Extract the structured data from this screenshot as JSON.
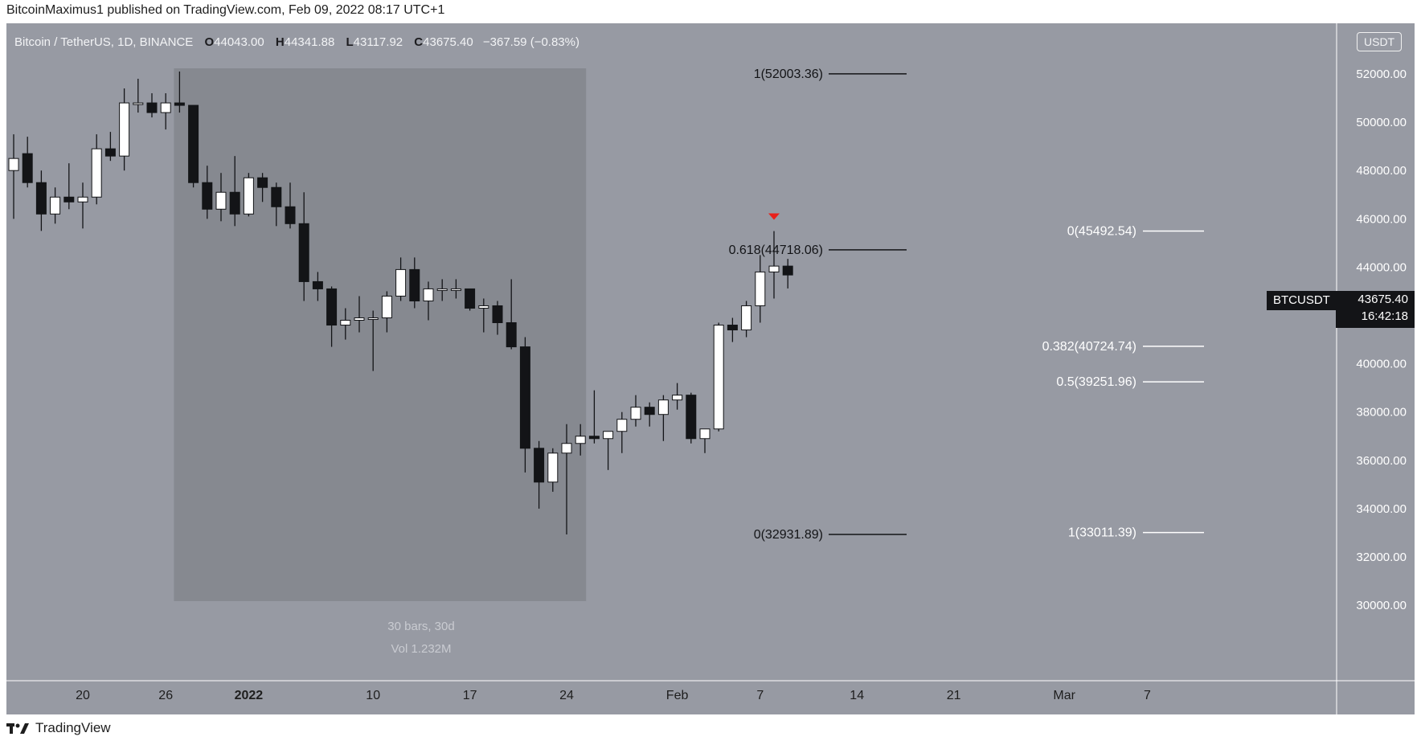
{
  "header": {
    "publisher_line": "BitcoinMaximus1 published on TradingView.com, Feb 09, 2022 08:17 UTC+1"
  },
  "legend": {
    "symbol": "Bitcoin / TetherUS, 1D, BINANCE",
    "open_label": "O",
    "open": "44043.00",
    "high_label": "H",
    "high": "44341.88",
    "low_label": "L",
    "low": "43117.92",
    "close_label": "C",
    "close": "43675.40",
    "change": "−367.59 (−0.83%)"
  },
  "currency_badge": "USDT",
  "symbol_tag": "BTCUSDT",
  "price_tag": {
    "price": "43675.40",
    "countdown": "16:42:18"
  },
  "range_box": {
    "bars_text": "30 bars, 30d",
    "vol_text": "Vol 1.232M"
  },
  "footer": {
    "brand": "TradingView"
  },
  "colors": {
    "background": "#979aa3",
    "range_box": "#868990",
    "up_candle": "#ffffff",
    "down_candle": "#131417",
    "marker": "#e8201a"
  },
  "chart_data": {
    "type": "candlestick",
    "title": "Bitcoin / TetherUS, 1D, BINANCE",
    "ylim": [
      30000,
      53500
    ],
    "y_ticks": [
      "52000.00",
      "50000.00",
      "48000.00",
      "46000.00",
      "44000.00",
      "42000.00",
      "40000.00",
      "38000.00",
      "36000.00",
      "34000.00",
      "32000.00",
      "30000.00"
    ],
    "x_ticks": [
      "20",
      "26",
      "2022",
      "10",
      "17",
      "24",
      "Feb",
      "7",
      "14",
      "21",
      "Mar",
      "7"
    ],
    "candles": [
      {
        "date": "2021-12-15",
        "o": 48000,
        "h": 49500,
        "l": 46000,
        "c": 48500
      },
      {
        "date": "2021-12-16",
        "o": 48700,
        "h": 49400,
        "l": 47300,
        "c": 47500
      },
      {
        "date": "2021-12-17",
        "o": 47500,
        "h": 48000,
        "l": 45500,
        "c": 46200
      },
      {
        "date": "2021-12-18",
        "o": 46200,
        "h": 47300,
        "l": 45800,
        "c": 46900
      },
      {
        "date": "2021-12-19",
        "o": 46900,
        "h": 48300,
        "l": 46400,
        "c": 46700
      },
      {
        "date": "2021-12-20",
        "o": 46700,
        "h": 47500,
        "l": 45600,
        "c": 46900
      },
      {
        "date": "2021-12-21",
        "o": 46900,
        "h": 49500,
        "l": 46600,
        "c": 48900
      },
      {
        "date": "2021-12-22",
        "o": 48900,
        "h": 49600,
        "l": 48400,
        "c": 48600
      },
      {
        "date": "2021-12-23",
        "o": 48600,
        "h": 51400,
        "l": 48000,
        "c": 50800
      },
      {
        "date": "2021-12-24",
        "o": 50800,
        "h": 51800,
        "l": 50400,
        "c": 50800
      },
      {
        "date": "2021-12-25",
        "o": 50800,
        "h": 51200,
        "l": 50200,
        "c": 50400
      },
      {
        "date": "2021-12-26",
        "o": 50400,
        "h": 51200,
        "l": 49700,
        "c": 50800
      },
      {
        "date": "2021-12-27",
        "o": 50800,
        "h": 52100,
        "l": 50400,
        "c": 50700
      },
      {
        "date": "2021-12-28",
        "o": 50700,
        "h": 50700,
        "l": 47300,
        "c": 47500
      },
      {
        "date": "2021-12-29",
        "o": 47500,
        "h": 48200,
        "l": 46000,
        "c": 46400
      },
      {
        "date": "2021-12-30",
        "o": 46400,
        "h": 47900,
        "l": 45900,
        "c": 47100
      },
      {
        "date": "2021-12-31",
        "o": 47100,
        "h": 48600,
        "l": 45700,
        "c": 46200
      },
      {
        "date": "2022-01-01",
        "o": 46200,
        "h": 47900,
        "l": 46100,
        "c": 47700
      },
      {
        "date": "2022-01-02",
        "o": 47700,
        "h": 47900,
        "l": 46700,
        "c": 47300
      },
      {
        "date": "2022-01-03",
        "o": 47300,
        "h": 47500,
        "l": 45700,
        "c": 46500
      },
      {
        "date": "2022-01-04",
        "o": 46500,
        "h": 47500,
        "l": 45600,
        "c": 45800
      },
      {
        "date": "2022-01-05",
        "o": 45800,
        "h": 47100,
        "l": 42600,
        "c": 43400
      },
      {
        "date": "2022-01-06",
        "o": 43400,
        "h": 43800,
        "l": 42600,
        "c": 43100
      },
      {
        "date": "2022-01-07",
        "o": 43100,
        "h": 43200,
        "l": 40700,
        "c": 41600
      },
      {
        "date": "2022-01-08",
        "o": 41600,
        "h": 42300,
        "l": 41000,
        "c": 41800
      },
      {
        "date": "2022-01-09",
        "o": 41800,
        "h": 42800,
        "l": 41300,
        "c": 41900
      },
      {
        "date": "2022-01-10",
        "o": 41900,
        "h": 42200,
        "l": 39700,
        "c": 41900
      },
      {
        "date": "2022-01-11",
        "o": 41900,
        "h": 43000,
        "l": 41300,
        "c": 42800
      },
      {
        "date": "2022-01-12",
        "o": 42800,
        "h": 44400,
        "l": 42600,
        "c": 43900
      },
      {
        "date": "2022-01-13",
        "o": 43900,
        "h": 44400,
        "l": 42300,
        "c": 42600
      },
      {
        "date": "2022-01-14",
        "o": 42600,
        "h": 43400,
        "l": 41800,
        "c": 43100
      },
      {
        "date": "2022-01-15",
        "o": 43100,
        "h": 43500,
        "l": 42600,
        "c": 43100
      },
      {
        "date": "2022-01-16",
        "o": 43100,
        "h": 43500,
        "l": 42700,
        "c": 43100
      },
      {
        "date": "2022-01-17",
        "o": 43100,
        "h": 43100,
        "l": 42200,
        "c": 42300
      },
      {
        "date": "2022-01-18",
        "o": 42300,
        "h": 42700,
        "l": 41300,
        "c": 42400
      },
      {
        "date": "2022-01-19",
        "o": 42400,
        "h": 42600,
        "l": 41200,
        "c": 41700
      },
      {
        "date": "2022-01-20",
        "o": 41700,
        "h": 43500,
        "l": 40600,
        "c": 40700
      },
      {
        "date": "2022-01-21",
        "o": 40700,
        "h": 41100,
        "l": 35500,
        "c": 36500
      },
      {
        "date": "2022-01-22",
        "o": 36500,
        "h": 36800,
        "l": 34000,
        "c": 35100
      },
      {
        "date": "2022-01-23",
        "o": 35100,
        "h": 36500,
        "l": 34700,
        "c": 36300
      },
      {
        "date": "2022-01-24",
        "o": 36300,
        "h": 37500,
        "l": 32931.89,
        "c": 36700
      },
      {
        "date": "2022-01-25",
        "o": 36700,
        "h": 37500,
        "l": 36200,
        "c": 37000
      },
      {
        "date": "2022-01-26",
        "o": 37000,
        "h": 38900,
        "l": 36700,
        "c": 36900
      },
      {
        "date": "2022-01-27",
        "o": 36900,
        "h": 37200,
        "l": 35600,
        "c": 37200
      },
      {
        "date": "2022-01-28",
        "o": 37200,
        "h": 38000,
        "l": 36300,
        "c": 37700
      },
      {
        "date": "2022-01-29",
        "o": 37700,
        "h": 38700,
        "l": 37400,
        "c": 38200
      },
      {
        "date": "2022-01-30",
        "o": 38200,
        "h": 38400,
        "l": 37400,
        "c": 37900
      },
      {
        "date": "2022-01-31",
        "o": 37900,
        "h": 38700,
        "l": 36800,
        "c": 38500
      },
      {
        "date": "2022-02-01",
        "o": 38500,
        "h": 39200,
        "l": 38100,
        "c": 38700
      },
      {
        "date": "2022-02-02",
        "o": 38700,
        "h": 38800,
        "l": 36700,
        "c": 36900
      },
      {
        "date": "2022-02-03",
        "o": 36900,
        "h": 37300,
        "l": 36300,
        "c": 37300
      },
      {
        "date": "2022-02-04",
        "o": 37300,
        "h": 41700,
        "l": 37200,
        "c": 41600
      },
      {
        "date": "2022-02-05",
        "o": 41600,
        "h": 41900,
        "l": 40900,
        "c": 41400
      },
      {
        "date": "2022-02-06",
        "o": 41400,
        "h": 42600,
        "l": 41100,
        "c": 42400
      },
      {
        "date": "2022-02-07",
        "o": 42400,
        "h": 44500,
        "l": 41700,
        "c": 43800
      },
      {
        "date": "2022-02-08",
        "o": 43800,
        "h": 45492.54,
        "l": 42700,
        "c": 44043
      },
      {
        "date": "2022-02-09",
        "o": 44043,
        "h": 44341.88,
        "l": 43117.92,
        "c": 43675.4
      }
    ],
    "fib_levels_left": [
      {
        "label": "1(52003.36)",
        "value": 52003.36
      },
      {
        "label": "0.618(44718.06)",
        "value": 44718.06
      },
      {
        "label": "0(32931.89)",
        "value": 32931.89
      }
    ],
    "fib_levels_right": [
      {
        "label": "0(45492.54)",
        "value": 45492.54
      },
      {
        "label": "0.382(40724.74)",
        "value": 40724.74
      },
      {
        "label": "0.5(39251.96)",
        "value": 39251.96
      },
      {
        "label": "1(33011.39)",
        "value": 33011.39
      }
    ],
    "highlight_range": {
      "from": "2021-12-27",
      "to": "2022-01-25"
    },
    "marker": {
      "date": "2022-02-08",
      "type": "down-arrow"
    }
  }
}
